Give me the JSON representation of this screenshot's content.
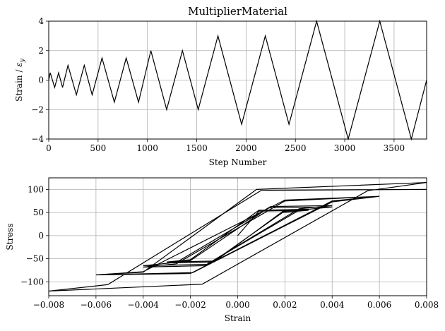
{
  "chart_data": [
    {
      "type": "line",
      "title": "MultiplierMaterial",
      "xlabel": "Step Number",
      "ylabel": "Strain / ε_y",
      "xlim": [
        0,
        3830
      ],
      "ylim": [
        -4,
        4
      ],
      "xticks": [
        0,
        500,
        1000,
        1500,
        2000,
        2500,
        3000,
        3500
      ],
      "xtick_labels": [
        "0",
        "500",
        "1000",
        "1500",
        "2000",
        "2500",
        "3000",
        "3500"
      ],
      "yticks": [
        -4,
        -2,
        0,
        2,
        4
      ],
      "ytick_labels": [
        "−4",
        "−2",
        "0",
        "2",
        "4"
      ],
      "grid": true,
      "series": [
        {
          "x": [
            0,
            15,
            60,
            100,
            140,
            195,
            280,
            360,
            440,
            540,
            665,
            785,
            910,
            1035,
            1195,
            1355,
            1515,
            1715,
            1955,
            2195,
            2435,
            2715,
            3035,
            3355,
            3675,
            3830
          ],
          "y": [
            0,
            0.5,
            -0.5,
            0.5,
            -0.5,
            1,
            -1,
            1,
            -1,
            1.5,
            -1.5,
            1.5,
            -1.5,
            2,
            -2,
            2,
            -2,
            3,
            -3,
            3,
            -3,
            4,
            -4,
            4,
            -4,
            0
          ]
        }
      ]
    },
    {
      "type": "line",
      "xlabel": "Strain",
      "ylabel": "Stress",
      "xlim": [
        -0.008,
        0.008
      ],
      "ylim": [
        -130,
        125
      ],
      "xticks": [
        -0.008,
        -0.006,
        -0.004,
        -0.002,
        0.0,
        0.002,
        0.004,
        0.006,
        0.008
      ],
      "xtick_labels": [
        "−0.008",
        "−0.006",
        "−0.004",
        "−0.002",
        "0.000",
        "0.002",
        "0.004",
        "0.006",
        "0.008"
      ],
      "yticks": [
        -100,
        -50,
        0,
        50,
        100
      ],
      "ytick_labels": [
        "−100",
        "−50",
        "0",
        "50",
        "100"
      ],
      "grid": true,
      "series": [
        {
          "x": [
            0,
            0.0009,
            0.003,
            0.0019,
            -0.001,
            -0.003,
            -0.002,
            0.0009,
            0.003,
            0.0019,
            -0.001,
            -0.003,
            -0.002,
            0.0013,
            0.004,
            0.0026,
            -0.0013,
            -0.004,
            -0.0026,
            0.0014,
            0.004,
            0.0026,
            -0.0014,
            -0.004,
            -0.0026,
            0.002,
            0.006,
            0.004,
            -0.0019,
            -0.006,
            -0.004,
            0.002,
            0.006,
            0.004,
            -0.002,
            -0.006,
            -0.004,
            0.0008,
            0.008,
            0.0055,
            -0.0015,
            -0.008,
            -0.0055,
            0.001,
            0.008
          ],
          "y": [
            0,
            53,
            55,
            50,
            -55,
            -57,
            -52,
            55,
            57,
            52,
            -57,
            -59,
            -54,
            60,
            62,
            55,
            -62,
            -65,
            -58,
            63,
            65,
            58,
            -65,
            -68,
            -61,
            75,
            85,
            73,
            -80,
            -85,
            -78,
            77,
            85,
            75,
            -82,
            -85,
            -79,
            100,
            115,
            97,
            -105,
            -120,
            -106,
            98,
            100
          ]
        }
      ]
    }
  ]
}
